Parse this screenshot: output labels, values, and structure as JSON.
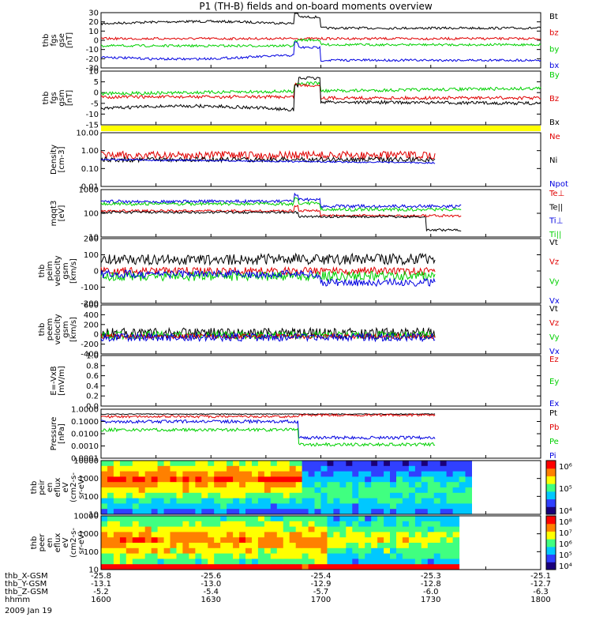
{
  "title": "P1 (TH-B) fields and on-board moments overview",
  "colors": {
    "black": "#000000",
    "red": "#e00000",
    "green": "#00d000",
    "blue": "#0000e0",
    "yellow": "#ffff00"
  },
  "time_axis": {
    "rows": [
      {
        "label": "thb_X-GSM",
        "values": [
          "-25.8",
          "-25.6",
          "-25.4",
          "-25.3",
          "-25.1"
        ]
      },
      {
        "label": "thb_Y-GSM",
        "values": [
          "-13.1",
          "-13.0",
          "-12.9",
          "-12.8",
          "-12.7"
        ]
      },
      {
        "label": "thb_Z-GSM",
        "values": [
          "-5.2",
          "-5.4",
          "-5.7",
          "-6.0",
          "-6.3"
        ]
      },
      {
        "label": "hhmm",
        "values": [
          "1600",
          "1630",
          "1700",
          "1730",
          "1800"
        ]
      }
    ],
    "date": "2009 Jan 19"
  },
  "chart_data": [
    {
      "type": "line",
      "id": "fgs_gse",
      "ylabel": [
        "thb",
        "fgs",
        "gse",
        "[nT]"
      ],
      "yticks": [
        "30",
        "20",
        "10",
        "0",
        "-10",
        "-20",
        "-30"
      ],
      "legend": [
        {
          "name": "Bt",
          "color": "black"
        },
        {
          "name": "bz",
          "color": "red"
        },
        {
          "name": "by",
          "color": "green"
        },
        {
          "name": "bx",
          "color": "blue"
        }
      ]
    },
    {
      "type": "line",
      "id": "fgs_gsm",
      "ylabel": [
        "thb",
        "fgs",
        "gsm",
        "[nT]"
      ],
      "yticks": [
        "10",
        "5",
        "0",
        "-5",
        "-10",
        "-15"
      ],
      "legend": [
        {
          "name": "By",
          "color": "green"
        },
        {
          "name": "Bz",
          "color": "red"
        },
        {
          "name": "Bx",
          "color": "black"
        }
      ]
    },
    {
      "type": "line",
      "id": "density",
      "ylabel": [
        "Density",
        "[cm-3]"
      ],
      "scale": "log",
      "yticks": [
        "10.00",
        "1.00",
        "0.10",
        "0.01"
      ],
      "legend": [
        {
          "name": "Ne",
          "color": "red"
        },
        {
          "name": "Ni",
          "color": "black"
        },
        {
          "name": "Npot",
          "color": "blue"
        }
      ]
    },
    {
      "type": "line",
      "id": "temperature",
      "ylabel": [
        "mqqt3",
        "[eV]"
      ],
      "scale": "log",
      "yticks": [
        "1000",
        "100",
        "10"
      ],
      "legend": [
        {
          "name": "Te⊥",
          "color": "red"
        },
        {
          "name": "Te||",
          "color": "black"
        },
        {
          "name": "Ti⊥",
          "color": "blue"
        },
        {
          "name": "Ti||",
          "color": "green"
        }
      ]
    },
    {
      "type": "line",
      "id": "peim_velocity",
      "ylabel": [
        "thb",
        "peim",
        "velocity",
        "gsm",
        "[km/s]"
      ],
      "yticks": [
        "200",
        "100",
        "0",
        "-100",
        "-200"
      ],
      "legend": [
        {
          "name": "Vt",
          "color": "black"
        },
        {
          "name": "Vz",
          "color": "red"
        },
        {
          "name": "Vy",
          "color": "green"
        },
        {
          "name": "Vx",
          "color": "blue"
        }
      ]
    },
    {
      "type": "line",
      "id": "peem_velocity",
      "ylabel": [
        "thb",
        "peem",
        "velocity",
        "gsm",
        "[km/s]"
      ],
      "yticks": [
        "600",
        "400",
        "200",
        "0",
        "-200",
        "-400"
      ],
      "legend": [
        {
          "name": "Vt",
          "color": "black"
        },
        {
          "name": "Vz",
          "color": "red"
        },
        {
          "name": "Vy",
          "color": "green"
        },
        {
          "name": "Vx",
          "color": "blue"
        }
      ]
    },
    {
      "type": "line",
      "id": "efield",
      "ylabel": [
        "E=-VxB",
        "[mV/m]"
      ],
      "yticks": [
        "1.0",
        "0.8",
        "0.6",
        "0.4",
        "0.2",
        "0.0"
      ],
      "legend": [
        {
          "name": "Ez",
          "color": "red"
        },
        {
          "name": "Ey",
          "color": "green"
        },
        {
          "name": "Ex",
          "color": "blue"
        }
      ]
    },
    {
      "type": "line",
      "id": "pressure",
      "ylabel": [
        "Pressure",
        "[nPa]"
      ],
      "scale": "log",
      "yticks": [
        "1.0000",
        "0.1000",
        "0.0100",
        "0.0010",
        "0.0001"
      ],
      "legend": [
        {
          "name": "Pt",
          "color": "black"
        },
        {
          "name": "Pb",
          "color": "red"
        },
        {
          "name": "Pe",
          "color": "green"
        },
        {
          "name": "Pi",
          "color": "blue"
        }
      ]
    },
    {
      "type": "heatmap",
      "id": "peir_spec",
      "ylabel": [
        "thb",
        "peir",
        "en",
        "eflux",
        "eV",
        "(cm2-s-",
        "sr-eV)"
      ],
      "scale": "log",
      "yticks": [
        "10000",
        "1000",
        "100",
        "10"
      ],
      "colorbar_ticks": [
        "10⁶",
        "10⁵",
        "10⁴"
      ]
    },
    {
      "type": "heatmap",
      "id": "peer_spec",
      "ylabel": [
        "thb",
        "peer",
        "en",
        "eflux",
        "eV",
        "(cm2-s-",
        "sr-eV)"
      ],
      "scale": "log",
      "yticks": [
        "10000",
        "1000",
        "100",
        "10"
      ],
      "colorbar_ticks": [
        "10⁸",
        "10⁷",
        "10⁶",
        "10⁵",
        "10⁴"
      ]
    }
  ]
}
